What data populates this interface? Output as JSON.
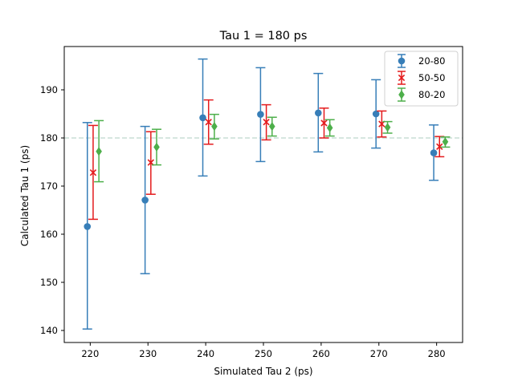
{
  "chart_data": {
    "type": "scatter",
    "title": "Tau 1 = 180 ps",
    "xlabel": "Simulated Tau 2 (ps)",
    "ylabel": "Calculated Tau 1 (ps)",
    "xlim": [
      215.5,
      284.5
    ],
    "ylim": [
      137.5,
      199
    ],
    "xticks": [
      220,
      230,
      240,
      250,
      260,
      270,
      280
    ],
    "yticks": [
      140,
      150,
      160,
      170,
      180,
      190
    ],
    "reference_line": {
      "y": 180,
      "style": "dashed",
      "color": "#c8ddd6"
    },
    "legend": {
      "placement": "top-right"
    },
    "series": [
      {
        "name": "20-80",
        "marker": "circle",
        "color": "#377eb8",
        "x": [
          219.5,
          229.5,
          239.5,
          249.5,
          259.5,
          269.5,
          279.5
        ],
        "y": [
          161.6,
          167.1,
          184.2,
          184.9,
          185.2,
          185.0,
          176.9
        ],
        "yerr_low": [
          140.3,
          151.8,
          172.1,
          175.1,
          177.1,
          177.9,
          171.2
        ],
        "yerr_high": [
          183.2,
          182.4,
          196.4,
          194.6,
          193.4,
          192.1,
          182.7
        ]
      },
      {
        "name": "50-50",
        "marker": "x",
        "color": "#e41a1c",
        "x": [
          220.5,
          230.5,
          240.5,
          250.5,
          260.5,
          270.5,
          280.5
        ],
        "y": [
          172.8,
          174.9,
          183.3,
          183.3,
          183.1,
          182.9,
          178.2
        ],
        "yerr_low": [
          163.1,
          168.3,
          178.7,
          179.6,
          180.0,
          180.2,
          176.1
        ],
        "yerr_high": [
          182.6,
          181.3,
          187.9,
          186.9,
          186.2,
          185.6,
          180.3
        ]
      },
      {
        "name": "80-20",
        "marker": "diamond",
        "color": "#4daf4a",
        "x": [
          221.5,
          231.5,
          241.5,
          251.5,
          261.5,
          271.5,
          281.5
        ],
        "y": [
          177.2,
          178.1,
          182.4,
          182.4,
          182.1,
          182.2,
          179.2
        ],
        "yerr_low": [
          170.9,
          174.4,
          179.8,
          180.4,
          180.4,
          181.0,
          178.1
        ],
        "yerr_high": [
          183.6,
          181.8,
          184.9,
          184.3,
          183.8,
          183.4,
          180.2
        ]
      }
    ]
  }
}
